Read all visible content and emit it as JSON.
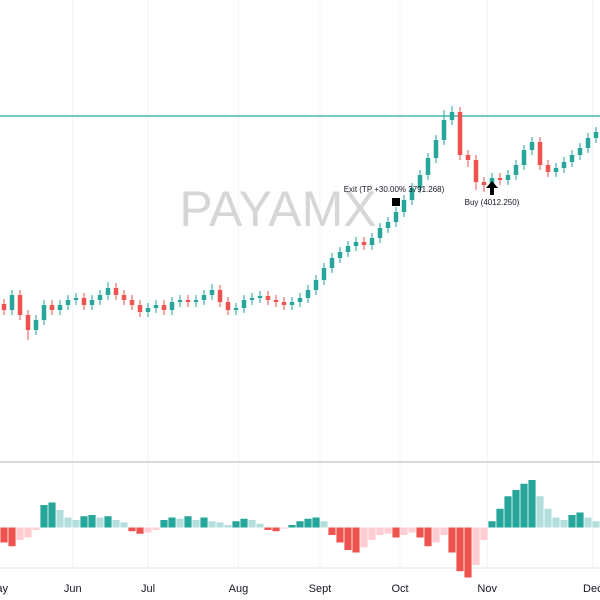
{
  "chart_data": {
    "type": "candlestick",
    "watermark": "PAYAMX",
    "xlim": [
      -0.5,
      74.5
    ],
    "xticks": [
      {
        "value": -0.8,
        "label": "May"
      },
      {
        "value": 8.6,
        "label": "Jun"
      },
      {
        "value": 18,
        "label": "Jul"
      },
      {
        "value": 29.3,
        "label": "Aug"
      },
      {
        "value": 39.5,
        "label": "Sept"
      },
      {
        "value": 49.5,
        "label": "Oct"
      },
      {
        "value": 60.4,
        "label": "Nov"
      },
      {
        "value": 73.6,
        "label": "Dec"
      }
    ],
    "ylim": [
      100,
      562
    ],
    "grid": true,
    "up_color": "#26a69a",
    "down_color": "#ef5350",
    "open": [
      258,
      252,
      267,
      247,
      232,
      242,
      257,
      252,
      257,
      262,
      264,
      257,
      262,
      267,
      274,
      267,
      262,
      257,
      250,
      254,
      257,
      252,
      260,
      262,
      260,
      262,
      267,
      272,
      260,
      252,
      254,
      262,
      264,
      266,
      262,
      260,
      257,
      260,
      264,
      272,
      282,
      294,
      304,
      310,
      316,
      320,
      317,
      324,
      334,
      340,
      350,
      362,
      374,
      387,
      404,
      422,
      442,
      450,
      407,
      402,
      380,
      377,
      384,
      382,
      387,
      397,
      412,
      420,
      397,
      390,
      394,
      400,
      407,
      414,
      424
    ],
    "high": [
      263,
      272,
      272,
      252,
      247,
      262,
      262,
      262,
      267,
      269,
      269,
      267,
      272,
      280,
      279,
      272,
      267,
      262,
      259,
      262,
      262,
      265,
      267,
      267,
      267,
      272,
      278,
      277,
      265,
      259,
      267,
      269,
      271,
      271,
      267,
      265,
      265,
      269,
      277,
      287,
      299,
      309,
      315,
      321,
      325,
      325,
      329,
      339,
      345,
      355,
      367,
      379,
      392,
      409,
      427,
      452,
      456,
      455,
      412,
      407,
      385,
      389,
      389,
      392,
      402,
      417,
      425,
      425,
      402,
      399,
      405,
      412,
      419,
      429,
      435
    ],
    "low": [
      247,
      247,
      242,
      222,
      227,
      237,
      247,
      247,
      252,
      257,
      252,
      252,
      257,
      262,
      262,
      257,
      252,
      245,
      245,
      249,
      247,
      247,
      255,
      255,
      255,
      257,
      262,
      255,
      247,
      247,
      249,
      257,
      259,
      257,
      255,
      252,
      252,
      255,
      259,
      267,
      277,
      289,
      299,
      305,
      311,
      312,
      312,
      319,
      329,
      335,
      345,
      357,
      369,
      382,
      399,
      417,
      437,
      402,
      395,
      372,
      370,
      372,
      377,
      377,
      382,
      392,
      407,
      392,
      385,
      385,
      389,
      395,
      402,
      409,
      419
    ],
    "close": [
      252,
      267,
      247,
      232,
      242,
      257,
      252,
      257,
      262,
      264,
      257,
      262,
      267,
      274,
      267,
      262,
      257,
      250,
      254,
      257,
      252,
      260,
      262,
      260,
      262,
      267,
      272,
      260,
      252,
      254,
      262,
      264,
      266,
      262,
      260,
      257,
      260,
      264,
      272,
      282,
      294,
      304,
      310,
      316,
      320,
      317,
      324,
      334,
      340,
      350,
      362,
      374,
      387,
      404,
      422,
      442,
      450,
      407,
      402,
      380,
      377,
      384,
      382,
      387,
      397,
      412,
      420,
      397,
      390,
      394,
      400,
      407,
      414,
      424,
      430
    ],
    "level_line": {
      "value": 446,
      "color": "#22ab94"
    },
    "annotations": [
      {
        "text": "Exit (TP +30.00% 3791.268)",
        "x": 49,
        "y": 360,
        "marker": "square"
      },
      {
        "text": "Buy (4012.250)",
        "x": 61,
        "y": 374,
        "marker": "arrow-up"
      }
    ],
    "indicator": {
      "ylim": [
        -50,
        50
      ],
      "colors": {
        "up_strong": "#26a69a",
        "up_weak": "#b2dfdb",
        "down_strong": "#ef5350",
        "down_weak": "#ffcdd2"
      },
      "values": [
        -12,
        -15,
        -10,
        -8,
        -2,
        18,
        20,
        14,
        8,
        6,
        9,
        10,
        8,
        9,
        6,
        4,
        -3,
        -5,
        -4,
        -2,
        6,
        8,
        7,
        9,
        6,
        8,
        5,
        4,
        2,
        5,
        7,
        6,
        3,
        -2,
        -3,
        -1,
        2,
        5,
        7,
        8,
        5,
        -6,
        -12,
        -18,
        -20,
        -16,
        -10,
        -6,
        -5,
        -8,
        -6,
        -4,
        -8,
        -15,
        -12,
        -6,
        -20,
        -35,
        -40,
        -30,
        -10,
        5,
        15,
        25,
        30,
        35,
        38,
        25,
        15,
        8,
        6,
        10,
        12,
        8,
        5
      ]
    }
  }
}
